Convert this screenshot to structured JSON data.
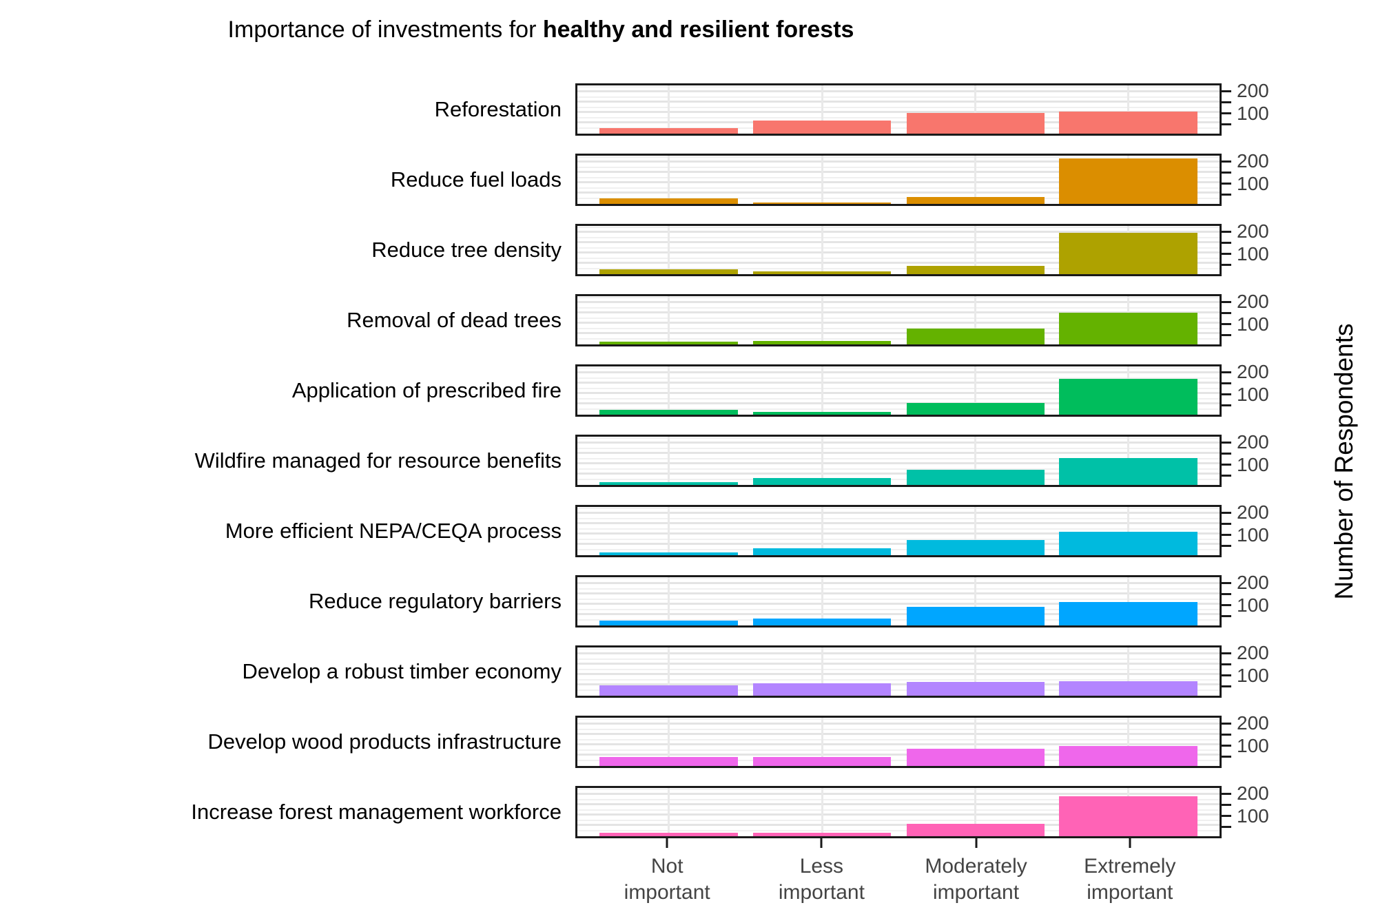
{
  "title": {
    "regular": "Importance of investments for ",
    "bold": "healthy and resilient forests"
  },
  "chart_data": {
    "type": "bar",
    "title": "Importance of investments for healthy and resilient forests",
    "xlabel": "",
    "ylabel": "Number of Respondents",
    "categories": [
      "Not important",
      "Less important",
      "Moderately important",
      "Extremely important"
    ],
    "category_label_lines": [
      [
        "Not",
        "important"
      ],
      [
        "Less",
        "important"
      ],
      [
        "Moderately",
        "important"
      ],
      [
        "Extremely",
        "important"
      ]
    ],
    "ylim": [
      0,
      235
    ],
    "y_ticks": [
      50,
      100,
      150,
      200
    ],
    "y_tick_labels": [
      "100",
      "200"
    ],
    "grid": "horizontal major every 50 and minor every 25, vertical gridline at each category center",
    "legend_position": "none",
    "layout": "11 horizontal facet panels, one per investment type, shared x axis, y ticks on right",
    "facets": [
      {
        "label": "Reforestation",
        "color": "#F8766D",
        "values": [
          28,
          65,
          100,
          106
        ]
      },
      {
        "label": "Reduce fuel loads",
        "color": "#DB8E00",
        "values": [
          28,
          6,
          33,
          220
        ]
      },
      {
        "label": "Reduce tree density",
        "color": "#AEA200",
        "values": [
          25,
          12,
          40,
          200
        ]
      },
      {
        "label": "Removal of dead trees",
        "color": "#64B200",
        "values": [
          12,
          18,
          78,
          155
        ]
      },
      {
        "label": "Application of prescribed fire",
        "color": "#00BD5C",
        "values": [
          22,
          15,
          58,
          175
        ]
      },
      {
        "label": "Wildfire managed for resource benefits",
        "color": "#00C1A7",
        "values": [
          12,
          32,
          75,
          130
        ]
      },
      {
        "label": "More efficient NEPA/CEQA process",
        "color": "#00BADE",
        "values": [
          14,
          35,
          75,
          115
        ]
      },
      {
        "label": "Reduce regulatory barriers",
        "color": "#00A6FF",
        "values": [
          25,
          35,
          90,
          115
        ]
      },
      {
        "label": "Develop a robust timber economy",
        "color": "#B385FF",
        "values": [
          52,
          60,
          68,
          70
        ]
      },
      {
        "label": "Develop wood products infrastructure",
        "color": "#EF67EB",
        "values": [
          45,
          45,
          85,
          98
        ]
      },
      {
        "label": "Increase forest management workforce",
        "color": "#FF63B6",
        "values": [
          18,
          18,
          60,
          195
        ]
      }
    ]
  },
  "style": {
    "panel_border_color": "#1a1a1a",
    "tick_label_color": "#3d3d3d",
    "x_label_color": "#444444",
    "grid_major_color": "#e4e4e4",
    "grid_minor_color": "#f0f0f0"
  }
}
